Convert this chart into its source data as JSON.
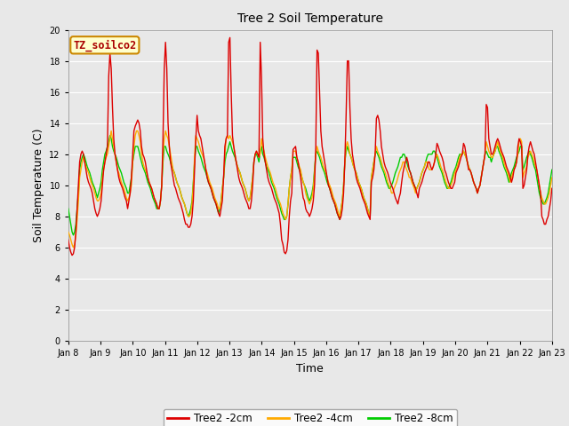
{
  "title": "Tree 2 Soil Temperature",
  "xlabel": "Time",
  "ylabel": "Soil Temperature (C)",
  "ylim": [
    0,
    20
  ],
  "yticks": [
    0,
    2,
    4,
    6,
    8,
    10,
    12,
    14,
    16,
    18,
    20
  ],
  "x_labels": [
    "Jan 8",
    "Jan 9",
    "Jan 10",
    "Jan 11",
    "Jan 12",
    "Jan 13",
    "Jan 14",
    "Jan 15",
    "Jan 16",
    "Jan 17",
    "Jan 18",
    "Jan 19",
    "Jan 20",
    "Jan 21",
    "Jan 22",
    "Jan 23"
  ],
  "annotation_text": "TZ_soilco2",
  "annotation_box_color": "#ffffcc",
  "annotation_box_edge": "#cc8800",
  "annotation_text_color": "#aa0000",
  "bg_color": "#e8e8e8",
  "grid_color": "#ffffff",
  "line_colors": [
    "#dd0000",
    "#ffaa00",
    "#00cc00"
  ],
  "line_labels": [
    "Tree2 -2cm",
    "Tree2 -4cm",
    "Tree2 -8cm"
  ],
  "line_width": 1.0,
  "tree2_2cm": [
    6.5,
    6.0,
    5.7,
    5.5,
    5.6,
    6.0,
    7.0,
    8.5,
    10.0,
    11.5,
    12.0,
    12.2,
    12.0,
    11.5,
    11.0,
    10.5,
    10.2,
    10.0,
    9.8,
    9.5,
    9.0,
    8.5,
    8.2,
    8.0,
    8.2,
    8.5,
    9.0,
    10.0,
    11.0,
    11.5,
    12.0,
    12.5,
    17.0,
    18.5,
    17.5,
    15.0,
    13.0,
    12.0,
    11.5,
    11.0,
    10.5,
    10.2,
    10.0,
    9.8,
    9.5,
    9.2,
    9.0,
    8.5,
    9.0,
    9.5,
    10.5,
    12.0,
    13.5,
    13.8,
    14.0,
    14.2,
    14.0,
    13.5,
    12.5,
    12.0,
    11.8,
    11.5,
    11.0,
    10.5,
    10.2,
    10.0,
    9.8,
    9.5,
    9.2,
    9.0,
    8.8,
    8.5,
    8.5,
    9.0,
    10.0,
    13.0,
    17.5,
    19.2,
    17.5,
    14.0,
    12.5,
    11.5,
    11.0,
    10.5,
    10.0,
    9.8,
    9.5,
    9.2,
    9.0,
    8.8,
    8.5,
    8.2,
    7.8,
    7.5,
    7.5,
    7.3,
    7.3,
    7.5,
    8.0,
    9.0,
    11.0,
    13.0,
    14.5,
    13.5,
    13.2,
    13.0,
    12.5,
    12.0,
    11.5,
    11.0,
    10.5,
    10.2,
    10.0,
    9.8,
    9.5,
    9.2,
    9.0,
    8.8,
    8.5,
    8.2,
    8.0,
    8.5,
    9.0,
    10.5,
    12.5,
    13.0,
    13.2,
    19.2,
    19.5,
    16.0,
    13.2,
    12.5,
    12.0,
    11.5,
    11.0,
    10.5,
    10.2,
    10.0,
    9.8,
    9.5,
    9.2,
    9.0,
    8.8,
    8.5,
    8.5,
    9.0,
    10.0,
    11.5,
    12.0,
    12.2,
    12.0,
    11.8,
    19.2,
    17.0,
    13.0,
    12.0,
    11.5,
    11.0,
    10.5,
    10.2,
    10.0,
    9.8,
    9.5,
    9.2,
    9.0,
    8.8,
    8.5,
    8.2,
    7.5,
    6.5,
    6.2,
    5.7,
    5.6,
    5.8,
    6.5,
    8.0,
    9.0,
    9.5,
    12.3,
    12.4,
    12.5,
    11.8,
    11.5,
    11.0,
    10.5,
    9.8,
    9.2,
    9.0,
    8.5,
    8.3,
    8.2,
    8.0,
    8.2,
    8.5,
    9.0,
    10.0,
    12.5,
    18.7,
    18.5,
    16.0,
    13.5,
    12.5,
    12.0,
    11.5,
    11.0,
    10.5,
    10.0,
    9.8,
    9.5,
    9.2,
    9.0,
    8.8,
    8.5,
    8.2,
    8.0,
    7.8,
    8.0,
    8.5,
    9.5,
    11.5,
    14.5,
    18.0,
    18.0,
    15.0,
    13.0,
    12.0,
    11.5,
    11.0,
    10.5,
    10.2,
    10.0,
    9.8,
    9.5,
    9.2,
    9.0,
    8.8,
    8.5,
    8.2,
    8.0,
    7.8,
    10.2,
    10.5,
    11.0,
    12.0,
    14.3,
    14.5,
    14.2,
    13.5,
    12.5,
    12.0,
    11.5,
    11.2,
    11.0,
    10.8,
    10.5,
    10.2,
    10.0,
    9.8,
    9.5,
    9.2,
    9.0,
    8.8,
    9.2,
    9.5,
    10.2,
    10.8,
    11.2,
    11.5,
    11.8,
    11.5,
    11.0,
    10.8,
    10.5,
    10.2,
    10.0,
    9.8,
    9.5,
    9.2,
    9.8,
    10.0,
    10.2,
    10.5,
    10.8,
    11.0,
    11.2,
    11.5,
    11.5,
    11.2,
    11.0,
    11.2,
    11.5,
    12.0,
    12.7,
    12.5,
    12.2,
    12.0,
    11.8,
    11.5,
    11.0,
    10.8,
    10.5,
    10.2,
    10.0,
    9.8,
    9.8,
    10.0,
    10.2,
    10.8,
    11.0,
    11.2,
    11.5,
    11.8,
    12.0,
    12.7,
    12.5,
    12.0,
    11.5,
    11.0,
    11.0,
    10.8,
    10.5,
    10.2,
    10.0,
    9.8,
    9.5,
    9.8,
    10.0,
    10.5,
    11.0,
    11.5,
    12.0,
    15.2,
    15.0,
    13.0,
    12.5,
    12.0,
    12.0,
    12.2,
    12.5,
    12.8,
    13.0,
    12.8,
    12.5,
    12.2,
    12.0,
    11.8,
    11.5,
    11.2,
    11.0,
    10.8,
    10.5,
    10.2,
    10.5,
    11.0,
    11.2,
    11.5,
    12.5,
    13.0,
    12.8,
    12.5,
    9.8,
    10.0,
    10.5,
    11.0,
    12.0,
    12.5,
    12.8,
    12.5,
    12.2,
    12.0,
    11.5,
    11.0,
    10.5,
    10.0,
    9.5,
    8.0,
    7.8,
    7.5,
    7.5,
    7.8,
    8.0,
    8.5,
    9.0,
    9.8
  ],
  "tree2_4cm": [
    7.0,
    6.8,
    6.5,
    6.2,
    6.0,
    6.2,
    6.8,
    7.8,
    9.0,
    10.5,
    11.0,
    11.5,
    11.8,
    11.5,
    11.2,
    11.0,
    10.8,
    10.5,
    10.2,
    10.0,
    9.8,
    9.5,
    9.2,
    9.0,
    9.0,
    9.2,
    9.5,
    10.5,
    11.0,
    11.5,
    11.8,
    12.0,
    12.5,
    13.0,
    13.5,
    13.0,
    12.5,
    12.0,
    11.5,
    11.0,
    10.8,
    10.5,
    10.2,
    10.0,
    9.8,
    9.5,
    9.2,
    9.0,
    9.2,
    9.5,
    10.0,
    11.5,
    12.5,
    13.2,
    13.5,
    13.5,
    13.2,
    12.8,
    12.0,
    11.5,
    11.2,
    11.0,
    10.8,
    10.5,
    10.2,
    10.0,
    9.8,
    9.5,
    9.2,
    9.0,
    8.8,
    8.5,
    8.5,
    9.0,
    10.0,
    12.0,
    13.0,
    13.5,
    13.2,
    13.0,
    12.5,
    12.0,
    11.5,
    11.0,
    10.8,
    10.5,
    10.2,
    10.0,
    9.8,
    9.5,
    9.2,
    9.0,
    8.8,
    8.5,
    8.2,
    8.0,
    8.0,
    8.2,
    8.8,
    10.0,
    11.8,
    13.2,
    13.0,
    12.8,
    12.5,
    12.2,
    12.0,
    11.8,
    11.5,
    11.0,
    10.8,
    10.5,
    10.2,
    10.0,
    9.8,
    9.5,
    9.2,
    9.0,
    8.8,
    8.5,
    8.5,
    9.0,
    9.8,
    10.5,
    12.0,
    13.0,
    13.2,
    13.0,
    13.2,
    13.0,
    12.8,
    12.5,
    12.0,
    11.5,
    11.2,
    11.0,
    10.8,
    10.5,
    10.2,
    10.0,
    9.8,
    9.5,
    9.2,
    9.0,
    9.2,
    9.8,
    10.5,
    11.5,
    12.0,
    12.2,
    12.0,
    11.8,
    12.0,
    13.0,
    12.5,
    12.2,
    11.8,
    11.5,
    11.2,
    11.0,
    10.8,
    10.5,
    10.2,
    10.0,
    9.8,
    9.5,
    9.2,
    9.0,
    8.8,
    8.5,
    8.2,
    8.0,
    7.8,
    8.0,
    8.8,
    9.8,
    10.5,
    11.0,
    12.2,
    12.2,
    12.2,
    11.8,
    11.5,
    11.2,
    11.0,
    10.5,
    10.2,
    10.0,
    9.5,
    9.2,
    9.0,
    8.8,
    9.0,
    9.2,
    9.8,
    10.8,
    12.0,
    12.5,
    12.2,
    12.0,
    11.8,
    11.5,
    11.2,
    11.0,
    10.8,
    10.5,
    10.2,
    10.0,
    9.8,
    9.5,
    9.2,
    9.0,
    8.8,
    8.5,
    8.2,
    8.0,
    8.5,
    9.0,
    10.0,
    11.5,
    12.5,
    12.8,
    12.5,
    12.0,
    11.8,
    11.5,
    11.2,
    11.0,
    10.8,
    10.5,
    10.2,
    10.0,
    9.8,
    9.5,
    9.2,
    9.0,
    8.8,
    8.5,
    8.2,
    8.0,
    10.5,
    11.0,
    11.5,
    12.0,
    12.5,
    12.2,
    12.0,
    11.8,
    11.5,
    11.2,
    11.0,
    10.8,
    10.5,
    10.2,
    10.0,
    9.8,
    9.5,
    9.5,
    9.8,
    10.0,
    10.2,
    10.5,
    10.8,
    11.0,
    11.2,
    11.5,
    11.5,
    11.2,
    11.0,
    10.8,
    10.5,
    10.5,
    10.2,
    10.0,
    9.8,
    9.5,
    9.8,
    10.0,
    10.2,
    10.5,
    10.8,
    11.0,
    11.2,
    11.5,
    11.5,
    11.2,
    11.0,
    11.0,
    11.0,
    11.2,
    11.5,
    11.8,
    12.0,
    11.8,
    11.5,
    11.2,
    11.0,
    10.8,
    10.5,
    10.2,
    10.0,
    9.8,
    9.8,
    10.0,
    10.2,
    10.5,
    10.8,
    11.0,
    11.2,
    11.5,
    11.8,
    12.0,
    12.0,
    12.2,
    12.0,
    11.8,
    11.5,
    11.2,
    11.0,
    10.8,
    10.5,
    10.2,
    10.0,
    9.8,
    9.5,
    9.8,
    10.0,
    10.5,
    11.0,
    11.5,
    12.0,
    12.8,
    12.5,
    12.2,
    12.0,
    11.8,
    11.8,
    12.0,
    12.2,
    12.5,
    12.8,
    12.5,
    12.2,
    12.0,
    11.8,
    11.5,
    11.2,
    11.0,
    10.8,
    10.5,
    10.2,
    10.5,
    10.8,
    11.0,
    11.2,
    11.5,
    12.0,
    12.8,
    13.0,
    12.8,
    10.5,
    10.8,
    11.0,
    11.2,
    11.8,
    12.0,
    12.2,
    12.0,
    11.8,
    11.5,
    11.2,
    11.0,
    10.5,
    10.0,
    9.5,
    9.2,
    9.0,
    8.8,
    8.8,
    9.0,
    9.2,
    9.5,
    10.0,
    10.5
  ],
  "tree2_8cm": [
    8.5,
    8.0,
    7.5,
    7.0,
    6.8,
    7.0,
    7.5,
    8.5,
    9.5,
    11.0,
    11.5,
    11.8,
    12.0,
    11.8,
    11.5,
    11.2,
    11.0,
    10.8,
    10.5,
    10.2,
    10.0,
    9.8,
    9.5,
    9.2,
    9.5,
    9.8,
    10.2,
    11.0,
    11.5,
    12.0,
    12.2,
    12.5,
    12.8,
    13.2,
    13.0,
    12.5,
    12.2,
    12.0,
    11.8,
    11.5,
    11.2,
    11.0,
    10.8,
    10.5,
    10.2,
    10.0,
    9.8,
    9.5,
    9.5,
    10.0,
    10.5,
    11.5,
    12.0,
    12.5,
    12.5,
    12.5,
    12.2,
    11.8,
    11.5,
    11.2,
    11.0,
    10.8,
    10.5,
    10.2,
    10.0,
    9.8,
    9.5,
    9.2,
    9.0,
    8.8,
    8.5,
    8.5,
    8.5,
    9.0,
    10.0,
    11.5,
    12.5,
    12.5,
    12.2,
    12.0,
    11.8,
    11.5,
    11.2,
    11.0,
    10.8,
    10.5,
    10.2,
    10.0,
    9.8,
    9.5,
    9.2,
    9.0,
    8.8,
    8.5,
    8.2,
    8.0,
    8.2,
    8.5,
    9.0,
    10.2,
    11.5,
    12.5,
    12.5,
    12.2,
    12.0,
    11.8,
    11.5,
    11.2,
    11.0,
    10.8,
    10.5,
    10.2,
    10.0,
    9.8,
    9.5,
    9.2,
    9.0,
    8.8,
    8.5,
    8.2,
    8.5,
    9.0,
    9.8,
    10.5,
    11.5,
    12.0,
    12.2,
    12.5,
    12.8,
    12.5,
    12.2,
    12.0,
    11.8,
    11.5,
    11.2,
    11.0,
    10.8,
    10.5,
    10.2,
    10.0,
    9.8,
    9.5,
    9.2,
    9.0,
    9.2,
    9.8,
    10.5,
    11.5,
    12.0,
    12.0,
    11.8,
    11.5,
    12.2,
    12.5,
    12.0,
    11.8,
    11.5,
    11.2,
    11.0,
    10.8,
    10.5,
    10.2,
    10.0,
    9.8,
    9.5,
    9.2,
    9.0,
    8.8,
    8.5,
    8.2,
    8.0,
    7.8,
    7.8,
    8.0,
    8.8,
    9.8,
    10.5,
    11.0,
    11.8,
    11.8,
    11.8,
    11.5,
    11.2,
    11.0,
    10.8,
    10.5,
    10.2,
    10.0,
    9.8,
    9.5,
    9.2,
    9.0,
    9.2,
    9.5,
    10.0,
    11.0,
    12.0,
    12.2,
    12.0,
    11.8,
    11.5,
    11.2,
    11.0,
    10.8,
    10.5,
    10.2,
    10.0,
    9.8,
    9.5,
    9.2,
    9.0,
    8.8,
    8.5,
    8.2,
    8.0,
    7.8,
    8.5,
    9.0,
    10.0,
    11.5,
    12.2,
    12.5,
    12.2,
    12.0,
    11.8,
    11.5,
    11.2,
    11.0,
    10.8,
    10.5,
    10.2,
    10.0,
    9.8,
    9.5,
    9.2,
    9.0,
    8.8,
    8.5,
    8.2,
    8.0,
    10.5,
    11.0,
    11.5,
    12.0,
    12.2,
    12.0,
    11.8,
    11.5,
    11.2,
    11.0,
    10.8,
    10.5,
    10.2,
    10.0,
    9.8,
    9.8,
    10.0,
    10.2,
    10.5,
    10.8,
    11.0,
    11.2,
    11.5,
    11.8,
    11.8,
    12.0,
    12.0,
    11.8,
    11.5,
    11.2,
    11.0,
    10.8,
    10.5,
    10.2,
    10.0,
    9.8,
    9.8,
    10.0,
    10.2,
    10.5,
    10.8,
    11.0,
    11.2,
    11.5,
    11.8,
    12.0,
    12.0,
    12.0,
    12.0,
    12.2,
    12.2,
    12.0,
    11.8,
    11.5,
    11.2,
    11.0,
    10.8,
    10.5,
    10.2,
    10.0,
    9.8,
    9.8,
    10.0,
    10.2,
    10.5,
    10.8,
    11.0,
    11.2,
    11.5,
    11.8,
    12.0,
    12.0,
    12.0,
    12.2,
    12.0,
    11.8,
    11.5,
    11.2,
    11.0,
    10.8,
    10.5,
    10.2,
    10.0,
    9.8,
    9.5,
    9.8,
    10.0,
    10.5,
    11.0,
    11.5,
    12.0,
    12.2,
    12.0,
    11.8,
    11.8,
    11.5,
    11.8,
    12.0,
    12.2,
    12.5,
    12.5,
    12.2,
    12.0,
    11.8,
    11.5,
    11.2,
    11.0,
    10.8,
    10.5,
    10.2,
    10.5,
    10.8,
    11.0,
    11.2,
    11.5,
    11.8,
    12.0,
    12.2,
    12.5,
    12.5,
    11.0,
    11.2,
    11.5,
    11.8,
    12.0,
    12.2,
    12.0,
    11.8,
    11.5,
    11.2,
    11.0,
    10.5,
    10.0,
    9.5,
    9.2,
    9.0,
    8.8,
    8.8,
    9.0,
    9.2,
    9.5,
    10.0,
    10.5,
    11.0
  ]
}
